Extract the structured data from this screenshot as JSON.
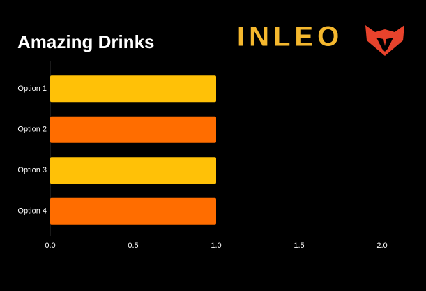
{
  "chart_data": {
    "type": "bar",
    "orientation": "horizontal",
    "title": "Amazing Drinks",
    "logo": "INLEO",
    "categories": [
      "Option 1",
      "Option 2",
      "Option 3",
      "Option 4"
    ],
    "values": [
      1,
      1,
      1,
      1
    ],
    "colors": [
      "#ffc107",
      "#ff6d00",
      "#ffc107",
      "#ff6d00"
    ],
    "xlim": [
      0,
      2.1
    ],
    "xticks": [
      {
        "value": 0,
        "label": "0.0"
      },
      0.5,
      {
        "value": 1,
        "label": "1.0"
      },
      1.5,
      {
        "value": 2,
        "label": "2.0"
      }
    ],
    "grid": false
  }
}
